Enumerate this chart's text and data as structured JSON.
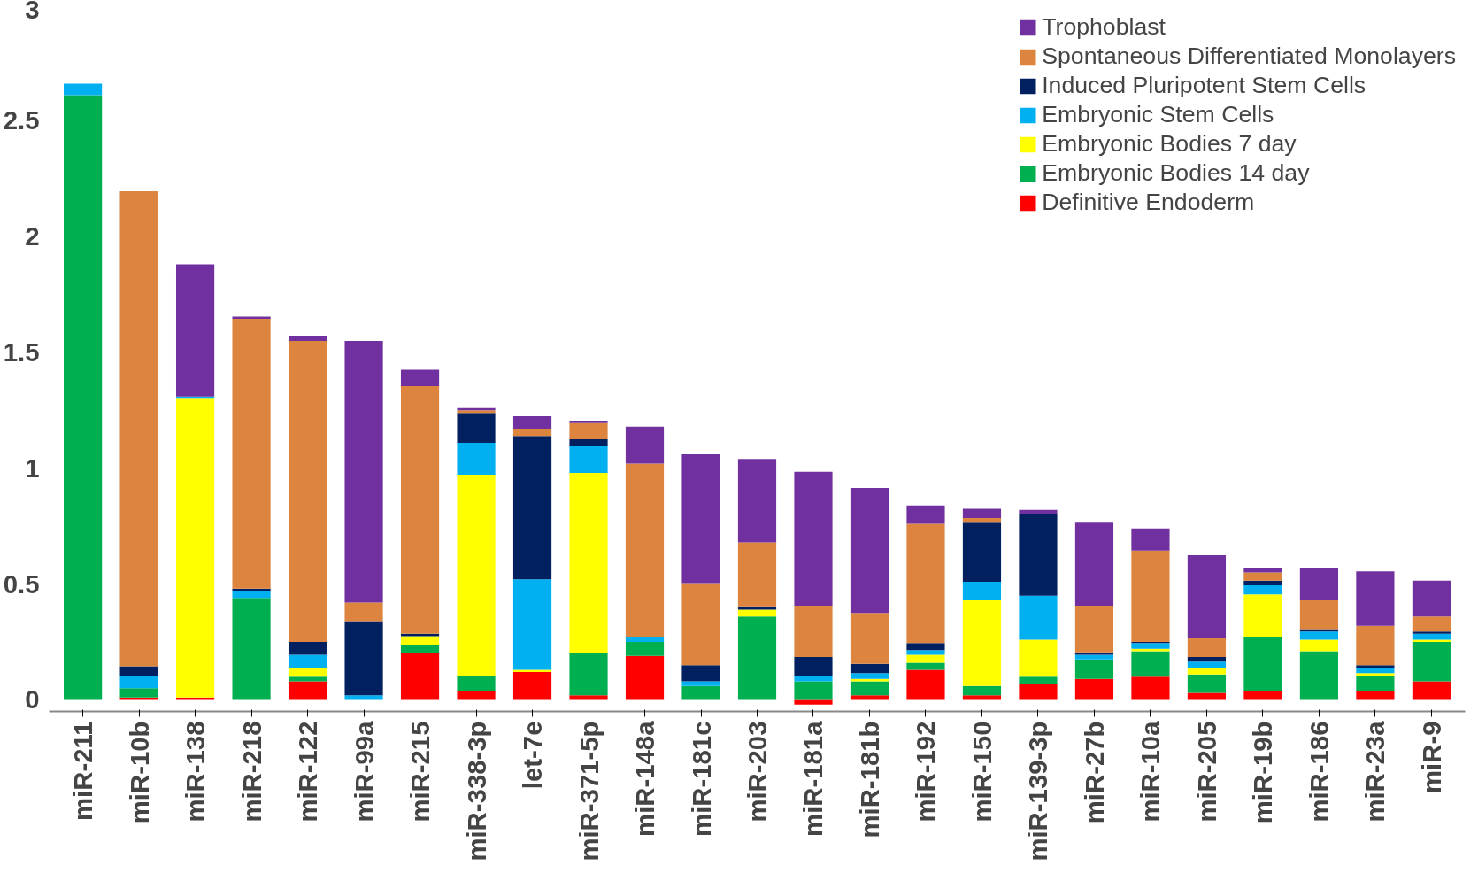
{
  "chart_data": {
    "type": "bar",
    "stacked": true,
    "legend": "top right",
    "grid": false,
    "categories": [
      "miR-211",
      "miR-10b",
      "miR-138",
      "miR-218",
      "miR-122",
      "miR-99a",
      "miR-215",
      "miR-338-3p",
      "let-7e",
      "miR-371-5p",
      "miR-148a",
      "miR-181c",
      "miR-203",
      "miR-181a",
      "miR-181b",
      "miR-192",
      "miR-150",
      "miR-139-3p",
      "miR-27b",
      "miR-10a",
      "miR-205",
      "miR-19b",
      "miR-186",
      "miR-23a",
      "miR-9"
    ],
    "ylim": [
      -0.05,
      3
    ],
    "yticks": [
      0,
      0.5,
      1,
      1.5,
      2,
      2.5,
      3
    ],
    "series": [
      {
        "name": "Definitive Endoderm",
        "color": "#ff0000",
        "values": [
          0,
          0.01,
          0.01,
          0,
          0.08,
          0,
          0.2,
          0.04,
          0.12,
          0.02,
          0.19,
          0,
          0,
          -0.02,
          0.02,
          0.13,
          0.02,
          0.07,
          0.09,
          0.1,
          0.03,
          0.04,
          0,
          0.04,
          0.08
        ]
      },
      {
        "name": "Embryonic Bodies 14 day",
        "color": "#00b050",
        "values": [
          2.61,
          0.04,
          0,
          0.44,
          0.02,
          0,
          0.035,
          0.065,
          0,
          0.18,
          0.06,
          0.06,
          0.36,
          0.08,
          0.06,
          0.03,
          0.04,
          0.03,
          0.085,
          0.11,
          0.08,
          0.23,
          0.21,
          0.065,
          0.17
        ]
      },
      {
        "name": "Embryonic Bodies 7 day",
        "color": "#ffff00",
        "values": [
          0,
          0,
          1.29,
          0,
          0.035,
          0,
          0.04,
          0.865,
          0.01,
          0.78,
          0,
          0,
          0.03,
          0,
          0.01,
          0.035,
          0.37,
          0.16,
          0,
          0.01,
          0.025,
          0.185,
          0.05,
          0.01,
          0.01
        ]
      },
      {
        "name": "Embryonic Stem Cells",
        "color": "#00b0f0",
        "values": [
          0.05,
          0.055,
          0.01,
          0.03,
          0.06,
          0.02,
          0,
          0.14,
          0.39,
          0.115,
          0.02,
          0.02,
          0,
          0.025,
          0.025,
          0.02,
          0.08,
          0.19,
          0.02,
          0.025,
          0.03,
          0.04,
          0.035,
          0.02,
          0.025
        ]
      },
      {
        "name": "Induced Pluripotent Stem Cells",
        "color": "#002060",
        "values": [
          0,
          0.04,
          0,
          0.01,
          0.055,
          0.32,
          0.01,
          0.125,
          0.62,
          0.03,
          0,
          0.07,
          0.01,
          0.08,
          0.04,
          0.03,
          0.255,
          0.35,
          0.01,
          0.005,
          0.02,
          0.02,
          0.01,
          0.015,
          0.01
        ]
      },
      {
        "name": "Spontaneous Differentiated Monolayers",
        "color": "#dd843f",
        "values": [
          0,
          2.05,
          0,
          1.165,
          1.3,
          0.08,
          1.07,
          0.015,
          0.03,
          0.07,
          0.75,
          0.35,
          0.28,
          0.22,
          0.22,
          0.515,
          0.02,
          0,
          0.2,
          0.395,
          0.08,
          0.035,
          0.125,
          0.17,
          0.065
        ]
      },
      {
        "name": "Trophoblast",
        "color": "#7030a0",
        "values": [
          0,
          0,
          0.57,
          0.01,
          0.02,
          1.13,
          0.07,
          0.01,
          0.055,
          0.01,
          0.16,
          0.56,
          0.36,
          0.58,
          0.54,
          0.08,
          0.04,
          0.02,
          0.36,
          0.095,
          0.36,
          0.02,
          0.14,
          0.235,
          0.155
        ]
      }
    ]
  }
}
